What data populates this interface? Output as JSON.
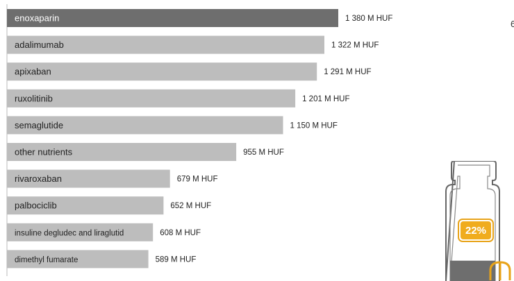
{
  "chart_data": {
    "type": "bar",
    "orientation": "horizontal",
    "categories": [
      "enoxaparin",
      "adalimumab",
      "apixaban",
      "ruxolitinib",
      "semaglutide",
      "other nutrients",
      "rivaroxaban",
      "palbociclib",
      "insuline degludec and liraglutid",
      "dimethyl fumarate"
    ],
    "values": [
      1380,
      1322,
      1291,
      1201,
      1150,
      955,
      679,
      652,
      608,
      589
    ],
    "value_labels": [
      "1 380 M  HUF",
      "1 322 M  HUF",
      "1 291 M  HUF",
      "1 201 M  HUF",
      "1 150 M  HUF",
      "955 M  HUF",
      "679 M  HUF",
      "652 M  HUF",
      "608 M  HUF",
      "589 M  HUF"
    ],
    "colors": {
      "highlight": "#6e6e6e",
      "bar": "#bdbdbd",
      "axis": "#bbbbbb"
    },
    "grid": false,
    "legend": "none"
  },
  "vial_graphic": {
    "percent_label": "22%",
    "fill_fraction": 0.22,
    "badge_color": "#f0ac1e",
    "liquid_color": "#6e6e6e",
    "outline_color": "#666666"
  },
  "edge_text": "6"
}
